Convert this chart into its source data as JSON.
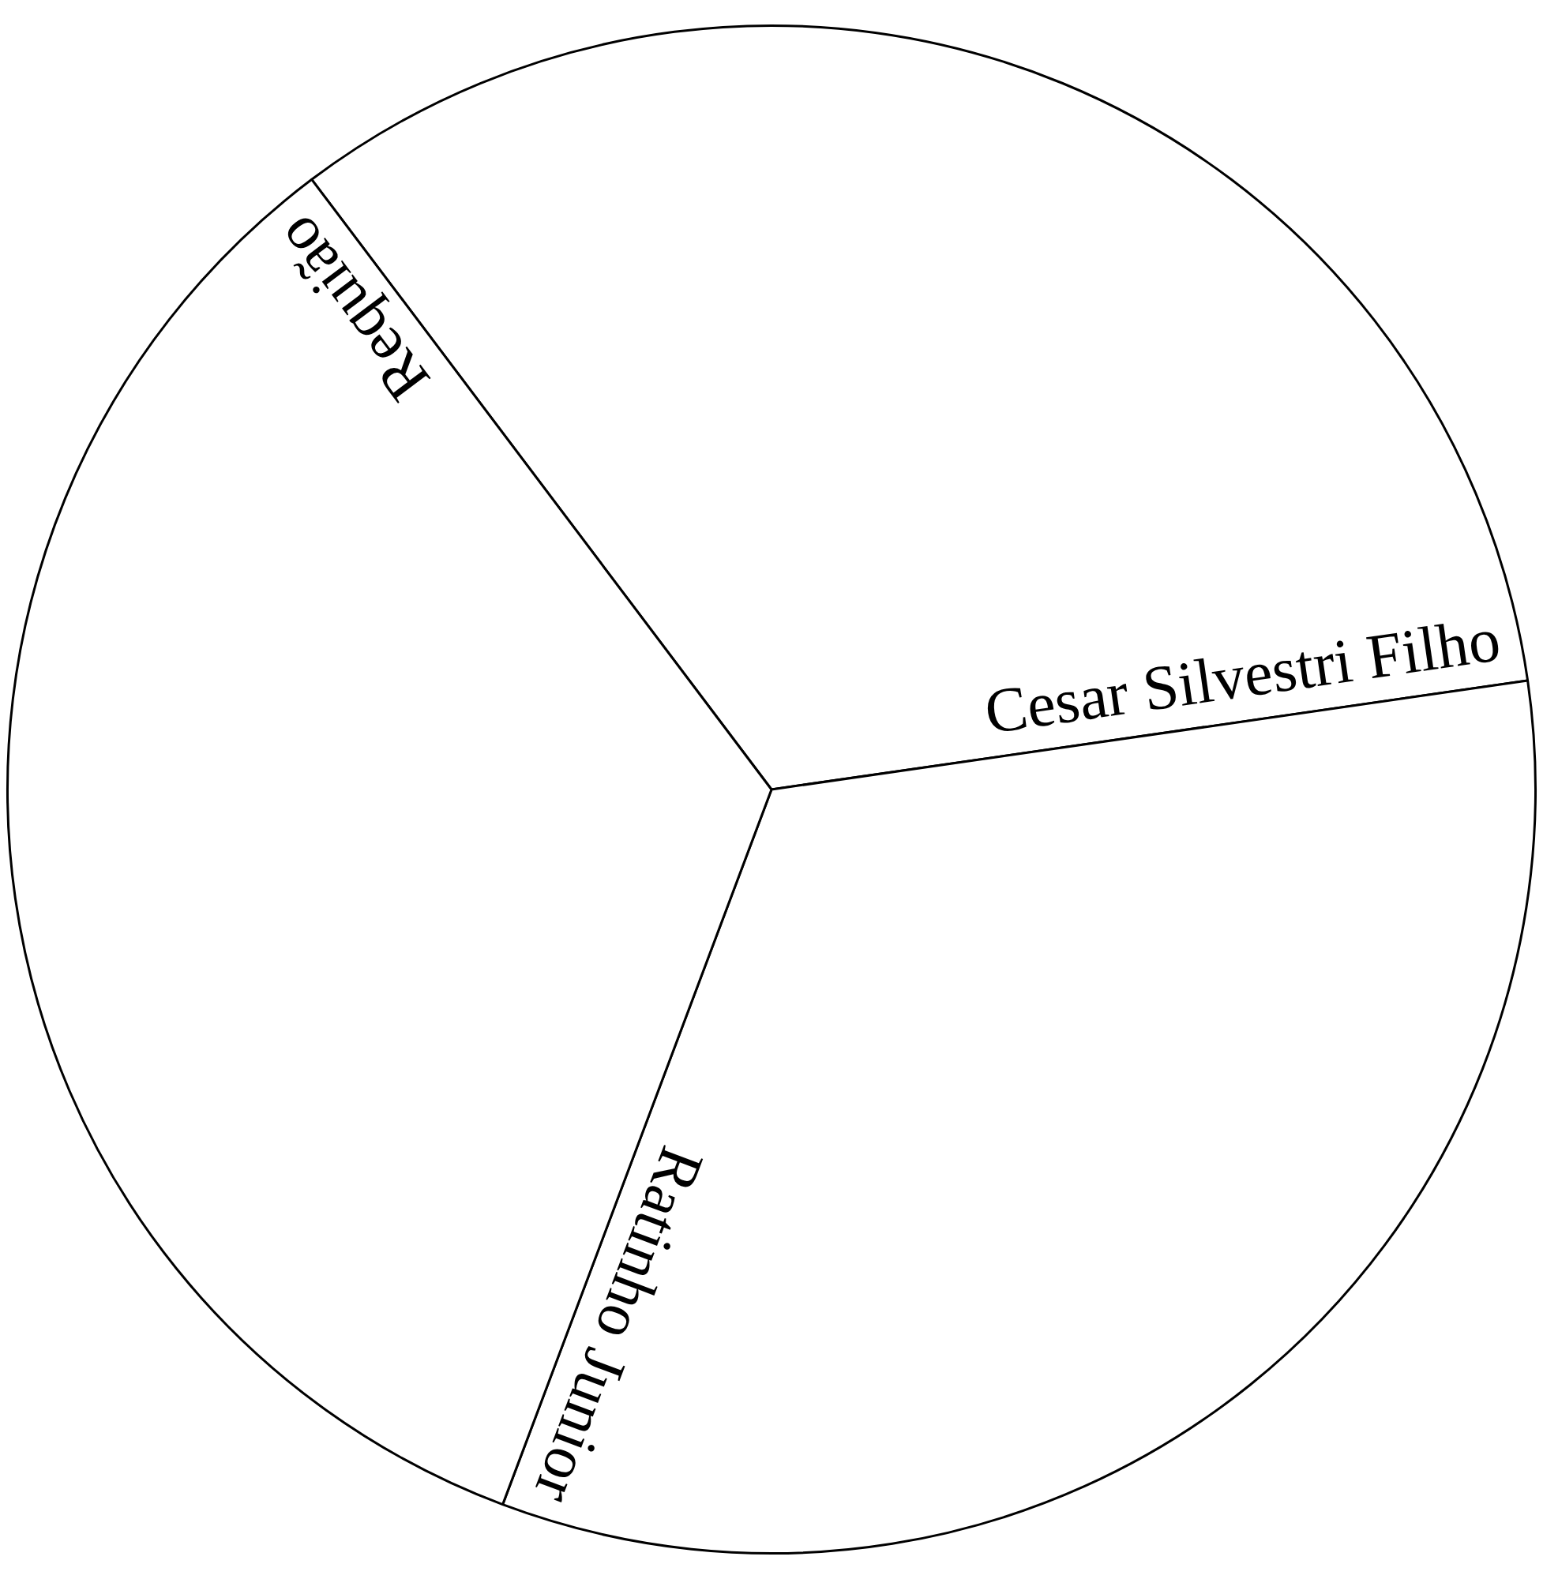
{
  "chart_data": {
    "type": "pie",
    "categories": [
      "Cesar Silvestri Filho",
      "Ratinho Junior",
      "Requião"
    ],
    "values": [
      33,
      33,
      34
    ],
    "colors": [
      "#ffffff",
      "#ffffff",
      "#ffffff"
    ],
    "legend": false
  }
}
